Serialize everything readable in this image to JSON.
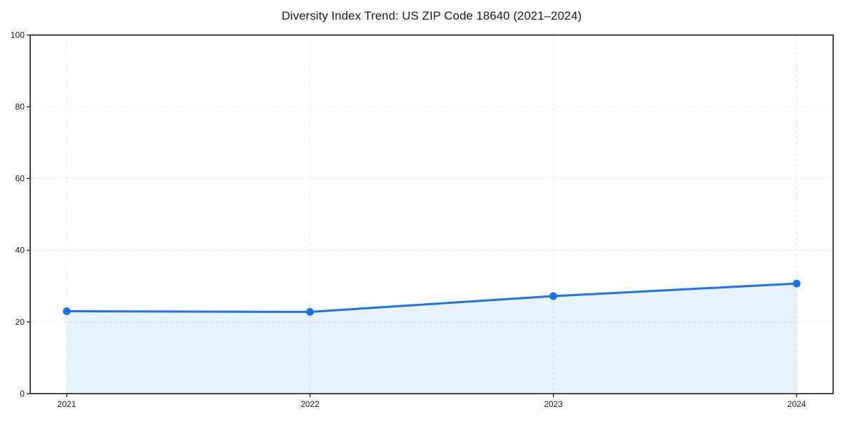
{
  "chart_data": {
    "type": "area",
    "title": "Diversity Index Trend: US ZIP Code 18640 (2021–2024)",
    "categories": [
      "2021",
      "2022",
      "2023",
      "2024"
    ],
    "series": [
      {
        "name": "Diversity Index",
        "values": [
          23.0,
          22.8,
          27.2,
          30.7
        ]
      }
    ],
    "xlabel": "",
    "ylabel": "",
    "ylim": [
      0,
      100
    ],
    "y_ticks": [
      0,
      20,
      40,
      60,
      80,
      100
    ],
    "grid": true,
    "grid_style": "dashed",
    "legend": false,
    "colors": {
      "line": "#1a73e8",
      "marker": "#1a73e8",
      "fill": "rgba(26,115,232,0.10)",
      "grid": "#e2e2e2",
      "spine": "#1a1a1a",
      "text": "#1a1a1a",
      "background": "#ffffff"
    }
  }
}
